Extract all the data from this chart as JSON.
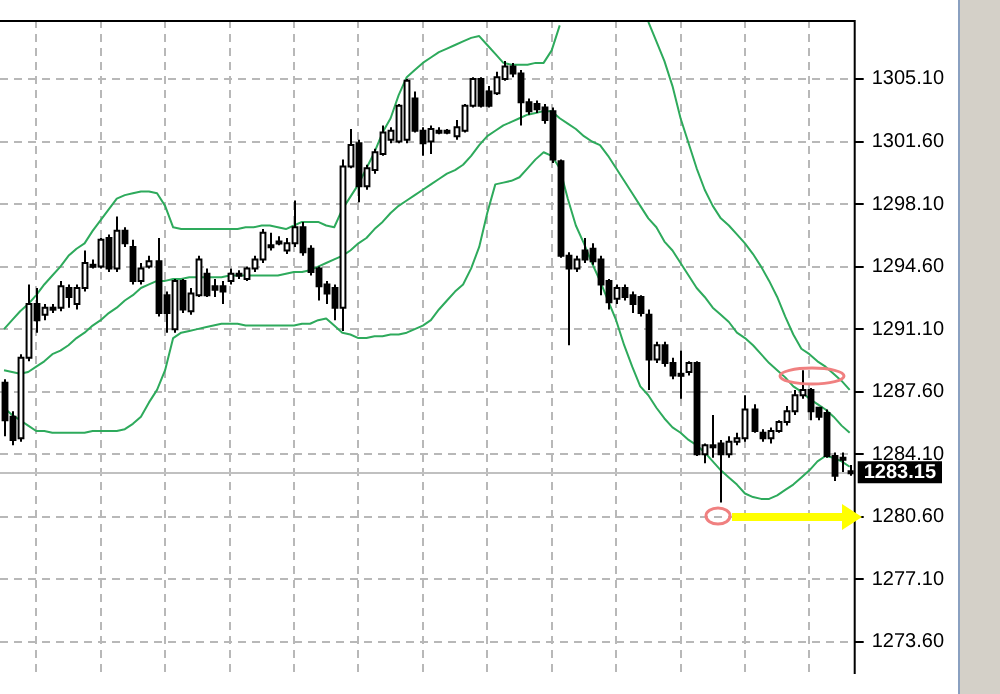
{
  "chart_data": {
    "type": "candlestick",
    "tick_labels": "y",
    "grid": true,
    "legend": false,
    "colors": [
      "#000000",
      "#000000",
      "#ffffff",
      "#ffffff",
      "#000000",
      "#ffffff",
      "#000000",
      "#ffffff",
      "#000000",
      "#ffffff",
      "#ffffff",
      "#000000",
      "#ffffff",
      "#000000",
      "#ffffff",
      "#000000",
      "#000000",
      "#ffffff",
      "#ffffff",
      "#000000",
      "#000000",
      "#ffffff",
      "#000000",
      "#ffffff",
      "#ffffff",
      "#000000",
      "#000000",
      "#000000",
      "#ffffff",
      "#000000",
      "#ffffff",
      "#ffffff",
      "#ffffff",
      "#000000",
      "#000000",
      "#ffffff",
      "#ffffff",
      "#000000",
      "#000000",
      "#000000",
      "#000000",
      "#000000",
      "#ffffff",
      "#ffffff",
      "#000000",
      "#ffffff",
      "#ffffff",
      "#ffffff",
      "#ffffff",
      "#ffffff",
      "#ffffff",
      "#000000",
      "#000000",
      "#ffffff",
      "#000000",
      "#000000",
      "#ffffff",
      "#ffffff",
      "#ffffff",
      "#000000",
      "#000000",
      "#ffffff",
      "#ffffff",
      "#000000",
      "#000000",
      "#000000",
      "#000000",
      "#000000",
      "#000000",
      "#000000",
      "#000000",
      "#ffffff",
      "#000000",
      "#000000",
      "#000000",
      "#000000",
      "#ffffff",
      "#000000",
      "#000000",
      "#000000",
      "#000000",
      "#ffffff",
      "#000000",
      "#000000",
      "#000000",
      "#ffffff",
      "#000000",
      "#ffffff",
      "#000000",
      "#000000",
      "#ffffff",
      "#ffffff",
      "#ffffff",
      "#000000",
      "#000000",
      "#ffffff",
      "#ffffff",
      "#ffffff",
      "#ffffff",
      "#ffffff",
      "#000000",
      "#000000",
      "#000000",
      "#000000",
      "#000000",
      "#ffffff"
    ],
    "categories": [
      null,
      null,
      null,
      null,
      null,
      null,
      null,
      null,
      null,
      null,
      null,
      null,
      null,
      null,
      null,
      null,
      null,
      null,
      null,
      null,
      null,
      null,
      null,
      null,
      null,
      null,
      null,
      null,
      null,
      null,
      null,
      null,
      null,
      null,
      null,
      null,
      null,
      null,
      null,
      null,
      null,
      null,
      null,
      null,
      null,
      null,
      null,
      null,
      null,
      null,
      null,
      null,
      null,
      null,
      null,
      null,
      null,
      null,
      null,
      null,
      null,
      null,
      null,
      null,
      null,
      null,
      null,
      null,
      null,
      null,
      null,
      null,
      null,
      null,
      null,
      null,
      null,
      null,
      null,
      null,
      null,
      null,
      null,
      null,
      null,
      null,
      null,
      null,
      null,
      null,
      null,
      null,
      null,
      null,
      null,
      null,
      null,
      null,
      null,
      null,
      null,
      null,
      null,
      null,
      null,
      null
    ],
    "ohlc": [
      [
        1288.1,
        1288.3,
        1285.1,
        1286.0
      ],
      [
        1286.2,
        1286.5,
        1284.6,
        1284.9
      ],
      [
        1285.0,
        1289.7,
        1284.8,
        1289.5
      ],
      [
        1289.5,
        1293.6,
        1289.3,
        1292.5
      ],
      [
        1292.5,
        1293.4,
        1290.9,
        1291.6
      ],
      [
        1291.9,
        1292.5,
        1291.6,
        1292.3
      ],
      [
        1292.3,
        1292.5,
        1292.0,
        1292.3
      ],
      [
        1292.3,
        1293.8,
        1292.1,
        1293.5
      ],
      [
        1293.4,
        1293.6,
        1292.3,
        1292.9
      ],
      [
        1292.5,
        1293.6,
        1292.2,
        1293.4
      ],
      [
        1293.4,
        1295.5,
        1293.2,
        1294.8
      ],
      [
        1294.7,
        1295.0,
        1294.5,
        1294.7
      ],
      [
        1294.6,
        1296.2,
        1294.5,
        1296.1
      ],
      [
        1296.2,
        1296.4,
        1294.3,
        1294.5
      ],
      [
        1294.5,
        1297.4,
        1294.3,
        1296.6
      ],
      [
        1296.6,
        1296.8,
        1295.7,
        1295.9
      ],
      [
        1295.7,
        1296.1,
        1293.6,
        1293.8
      ],
      [
        1293.8,
        1294.8,
        1293.6,
        1294.5
      ],
      [
        1294.6,
        1295.2,
        1294.5,
        1294.9
      ],
      [
        1294.9,
        1296.2,
        1291.8,
        1292.0
      ],
      [
        1293.0,
        1293.2,
        1290.9,
        1292.0
      ],
      [
        1291.1,
        1293.9,
        1290.9,
        1293.8
      ],
      [
        1293.8,
        1293.9,
        1292.0,
        1292.2
      ],
      [
        1292.1,
        1293.4,
        1291.9,
        1293.1
      ],
      [
        1293.0,
        1295.2,
        1292.9,
        1295.0
      ],
      [
        1294.2,
        1294.5,
        1292.9,
        1293.0
      ],
      [
        1293.5,
        1293.9,
        1292.9,
        1293.3
      ],
      [
        1293.5,
        1293.8,
        1292.5,
        1293.2
      ],
      [
        1293.8,
        1294.5,
        1293.6,
        1294.2
      ],
      [
        1294.2,
        1294.4,
        1293.9,
        1294.2
      ],
      [
        1293.9,
        1294.6,
        1293.8,
        1294.5
      ],
      [
        1294.5,
        1295.2,
        1294.3,
        1295.0
      ],
      [
        1295.0,
        1296.7,
        1294.8,
        1296.5
      ],
      [
        1295.8,
        1296.5,
        1295.5,
        1295.8
      ],
      [
        1296.0,
        1296.3,
        1295.8,
        1296.0
      ],
      [
        1295.5,
        1296.2,
        1295.3,
        1295.9
      ],
      [
        1295.9,
        1298.3,
        1295.7,
        1296.8
      ],
      [
        1296.8,
        1297.1,
        1295.2,
        1295.4
      ],
      [
        1295.6,
        1295.8,
        1294.1,
        1294.3
      ],
      [
        1294.5,
        1294.6,
        1292.7,
        1293.5
      ],
      [
        1293.6,
        1293.8,
        1292.5,
        1293.1
      ],
      [
        1293.4,
        1293.6,
        1291.6,
        1292.3
      ],
      [
        1292.3,
        1300.6,
        1291.0,
        1300.2
      ],
      [
        1300.2,
        1302.3,
        1300.1,
        1301.4
      ],
      [
        1301.5,
        1301.7,
        1298.2,
        1299.1
      ],
      [
        1299.1,
        1300.3,
        1298.9,
        1300.1
      ],
      [
        1300.0,
        1301.2,
        1299.8,
        1301.0
      ],
      [
        1300.9,
        1302.5,
        1300.8,
        1302.1
      ],
      [
        1301.7,
        1302.4,
        1301.5,
        1302.2
      ],
      [
        1301.6,
        1303.7,
        1301.5,
        1303.6
      ],
      [
        1301.7,
        1305.1,
        1301.5,
        1305.0
      ],
      [
        1304.0,
        1304.4,
        1302.1,
        1302.2
      ],
      [
        1302.2,
        1302.4,
        1300.8,
        1301.5
      ],
      [
        1301.6,
        1302.5,
        1300.9,
        1302.3
      ],
      [
        1302.2,
        1302.4,
        1302.0,
        1302.2
      ],
      [
        1302.2,
        1302.3,
        1302.0,
        1302.1
      ],
      [
        1301.9,
        1302.8,
        1301.7,
        1302.4
      ],
      [
        1302.2,
        1303.7,
        1302.1,
        1303.6
      ],
      [
        1303.6,
        1305.2,
        1303.5,
        1305.1
      ],
      [
        1305.1,
        1305.2,
        1303.5,
        1303.6
      ],
      [
        1304.4,
        1304.7,
        1303.5,
        1303.6
      ],
      [
        1304.3,
        1305.5,
        1304.2,
        1305.2
      ],
      [
        1305.1,
        1306.1,
        1305.0,
        1305.8
      ],
      [
        1305.8,
        1306.0,
        1305.2,
        1305.4
      ],
      [
        1305.4,
        1305.6,
        1302.5,
        1303.8
      ],
      [
        1303.8,
        1304.0,
        1303.1,
        1303.3
      ],
      [
        1303.7,
        1303.9,
        1303.2,
        1303.4
      ],
      [
        1303.5,
        1303.7,
        1302.6,
        1302.8
      ],
      [
        1303.3,
        1303.5,
        1300.4,
        1300.6
      ],
      [
        1300.5,
        1300.6,
        1295.1,
        1295.2
      ],
      [
        1295.2,
        1295.4,
        1290.2,
        1294.5
      ],
      [
        1294.5,
        1295.2,
        1294.3,
        1295.0
      ],
      [
        1295.5,
        1296.2,
        1294.8,
        1295.0
      ],
      [
        1295.6,
        1295.9,
        1294.7,
        1294.9
      ],
      [
        1295.0,
        1295.2,
        1293.0,
        1293.6
      ],
      [
        1293.8,
        1293.9,
        1292.2,
        1292.6
      ],
      [
        1292.8,
        1293.6,
        1292.5,
        1293.4
      ],
      [
        1293.4,
        1293.6,
        1292.7,
        1292.9
      ],
      [
        1293.0,
        1293.2,
        1292.0,
        1292.5
      ],
      [
        1292.9,
        1293.0,
        1291.8,
        1292.0
      ],
      [
        1291.9,
        1292.2,
        1287.7,
        1289.4
      ],
      [
        1289.4,
        1290.4,
        1289.2,
        1290.2
      ],
      [
        1290.2,
        1290.4,
        1289.0,
        1289.2
      ],
      [
        1289.2,
        1289.5,
        1288.3,
        1288.5
      ],
      [
        1288.6,
        1289.9,
        1287.2,
        1288.6
      ],
      [
        1288.7,
        1289.3,
        1288.5,
        1289.2
      ],
      [
        1289.2,
        1289.3,
        1284.0,
        1284.1
      ],
      [
        1284.1,
        1284.7,
        1283.6,
        1284.6
      ],
      [
        1284.6,
        1286.3,
        1283.9,
        1284.6
      ],
      [
        1284.7,
        1284.9,
        1281.4,
        1284.1
      ],
      [
        1284.1,
        1285.1,
        1283.9,
        1284.8
      ],
      [
        1284.8,
        1285.3,
        1284.6,
        1285.0
      ],
      [
        1285.0,
        1287.4,
        1284.8,
        1286.6
      ],
      [
        1286.6,
        1286.9,
        1285.3,
        1285.4
      ],
      [
        1285.3,
        1285.5,
        1284.8,
        1285.0
      ],
      [
        1285.0,
        1285.6,
        1284.7,
        1285.4
      ],
      [
        1285.4,
        1286.0,
        1285.3,
        1285.9
      ],
      [
        1285.9,
        1286.8,
        1285.7,
        1286.5
      ],
      [
        1286.5,
        1287.7,
        1286.3,
        1287.4
      ],
      [
        1287.4,
        1288.8,
        1287.2,
        1287.7
      ],
      [
        1287.7,
        1287.8,
        1286.0,
        1286.5
      ],
      [
        1286.7,
        1286.7,
        1286.0,
        1286.2
      ],
      [
        1286.4,
        1286.6,
        1283.9,
        1284.0
      ],
      [
        1284.0,
        1284.2,
        1282.6,
        1282.9
      ],
      [
        1283.9,
        1284.2,
        1283.1,
        1283.9
      ],
      [
        1283.05,
        1283.5,
        1282.9,
        1283.15
      ]
    ],
    "series": [
      {
        "type": "line",
        "color": "#2eaa5c",
        "values": [
          1291.1,
          1291.6,
          1292.1,
          1292.5,
          1293.0,
          1293.6,
          1294.1,
          1294.6,
          1295.2,
          1295.6,
          1295.9,
          1296.6,
          1297.2,
          1297.8,
          1298.4,
          1298.6,
          1298.7,
          1298.8,
          1298.8,
          1298.7,
          1298.0,
          1296.8,
          1296.7,
          1296.7,
          1296.7,
          1296.7,
          1296.7,
          1296.7,
          1296.7,
          1296.7,
          1296.8,
          1296.8,
          1296.9,
          1296.9,
          1296.8,
          1296.7,
          1296.9,
          1297.1,
          1297.1,
          1297.1,
          1296.9,
          1296.8,
          1297.8,
          1298.5,
          1299.2,
          1300.1,
          1301.0,
          1302.1,
          1302.9,
          1304.2,
          1305.2,
          1305.6,
          1306.0,
          1306.3,
          1306.6,
          1306.8,
          1307.0,
          1307.2,
          1307.4,
          1307.5,
          1307.0,
          1306.5,
          1306.0,
          1305.9,
          1305.9,
          1305.9,
          1306.0,
          1306.0,
          1306.7,
          1308.1,
          null,
          null,
          null,
          null,
          null,
          null,
          null,
          null,
          null,
          null,
          1308.3,
          1307.2,
          1306.1,
          1304.7,
          1302.9,
          1301.5,
          1300.1,
          1298.9,
          1298.0,
          1297.3,
          1296.9,
          1296.4,
          1295.9,
          1295.3,
          1294.6,
          1293.8,
          1292.9,
          1291.8,
          1290.8,
          1290.0,
          1289.7,
          1289.3,
          1289.0,
          1288.6,
          1288.2,
          1287.7
        ]
      },
      {
        "type": "line",
        "color": "#2eaa5c",
        "values": [
          1288.8,
          1288.7,
          1288.6,
          1288.7,
          1289.0,
          1289.3,
          1289.7,
          1289.9,
          1290.2,
          1290.6,
          1290.9,
          1291.3,
          1291.6,
          1292.0,
          1292.3,
          1292.7,
          1293.0,
          1293.4,
          1293.6,
          1293.8,
          1293.8,
          1293.9,
          1293.9,
          1294.0,
          1294.0,
          1294.0,
          1294.0,
          1294.0,
          1294.1,
          1294.1,
          1294.1,
          1294.1,
          1294.1,
          1294.1,
          1294.1,
          1294.2,
          1294.3,
          1294.3,
          1294.4,
          1294.6,
          1294.8,
          1295.0,
          1295.2,
          1295.5,
          1295.9,
          1296.2,
          1296.7,
          1297.1,
          1297.6,
          1298.0,
          1298.3,
          1298.6,
          1298.9,
          1299.2,
          1299.5,
          1299.8,
          1300.0,
          1300.3,
          1300.8,
          1301.4,
          1301.9,
          1302.2,
          1302.5,
          1302.7,
          1302.9,
          1303.1,
          1303.2,
          1303.3,
          1303.3,
          1302.9,
          1302.6,
          1302.3,
          1301.9,
          1301.6,
          1301.4,
          1300.8,
          1300.1,
          1299.4,
          1298.7,
          1298.0,
          1297.3,
          1296.8,
          1296.0,
          1295.5,
          1294.8,
          1294.1,
          1293.4,
          1292.9,
          1292.3,
          1291.9,
          1291.5,
          1290.9,
          1290.6,
          1290.2,
          1289.7,
          1289.2,
          1288.8,
          1288.4,
          1287.9,
          1287.6,
          1287.2,
          1286.9,
          1286.6,
          1286.2,
          1285.7,
          1285.3
        ]
      },
      {
        "type": "line",
        "color": "#2eaa5c",
        "values": [
          1286.7,
          1286.3,
          1286.0,
          1285.7,
          1285.4,
          1285.4,
          1285.3,
          1285.3,
          1285.3,
          1285.3,
          1285.3,
          1285.4,
          1285.4,
          1285.4,
          1285.4,
          1285.5,
          1285.8,
          1286.2,
          1287.0,
          1287.7,
          1288.8,
          1290.6,
          1290.9,
          1291.0,
          1291.1,
          1291.2,
          1291.3,
          1291.4,
          1291.4,
          1291.4,
          1291.3,
          1291.3,
          1291.3,
          1291.3,
          1291.3,
          1291.3,
          1291.3,
          1291.4,
          1291.4,
          1291.6,
          1291.7,
          1291.3,
          1290.9,
          1290.8,
          1290.6,
          1290.6,
          1290.7,
          1290.7,
          1290.8,
          1290.8,
          1290.9,
          1291.1,
          1291.3,
          1291.6,
          1292.2,
          1292.7,
          1293.2,
          1293.6,
          1294.5,
          1295.7,
          1297.6,
          1299.2,
          1299.3,
          1299.4,
          1299.6,
          1300.1,
          1300.6,
          1301.0,
          1300.8,
          1300.1,
          1298.4,
          1296.9,
          1295.9,
          1294.8,
          1293.8,
          1292.7,
          1291.6,
          1290.2,
          1289.0,
          1287.9,
          1287.4,
          1286.7,
          1286.1,
          1285.6,
          1285.3,
          1284.9,
          1284.6,
          1284.2,
          1283.7,
          1283.2,
          1282.8,
          1282.4,
          1281.9,
          1281.7,
          1281.6,
          1281.6,
          1281.8,
          1282.1,
          1282.4,
          1282.8,
          1283.2,
          1283.7,
          1284.0,
          1283.9,
          1283.7,
          1283.4
        ]
      }
    ],
    "ylim": [
      1271.8,
      1308.4
    ],
    "yticks": [
      {
        "value": 1273.6,
        "label": "1273.60"
      },
      {
        "value": 1277.1,
        "label": "1277.10"
      },
      {
        "value": 1280.6,
        "label": "1280.60"
      },
      {
        "value": 1284.1,
        "label": "1284.10"
      },
      {
        "value": 1287.6,
        "label": "1287.60"
      },
      {
        "value": 1291.1,
        "label": "1291.10"
      },
      {
        "value": 1294.6,
        "label": "1294.60"
      },
      {
        "value": 1298.1,
        "label": "1298.10"
      },
      {
        "value": 1301.6,
        "label": "1301.60"
      },
      {
        "value": 1305.1,
        "label": "1305.10"
      }
    ],
    "ref_lines": [
      {
        "axis": "y",
        "value": 1283.15,
        "label": "1283.15",
        "color": "#c0c0c0"
      }
    ]
  }
}
